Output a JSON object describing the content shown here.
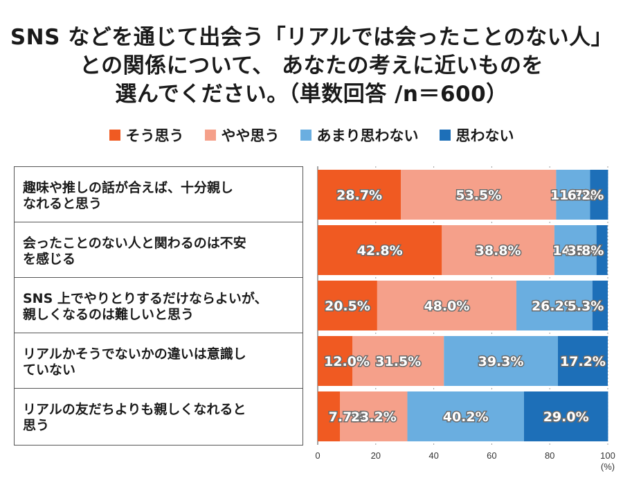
{
  "title_lines": [
    "SNS などを通じて出会う「リアルでは会ったことのない人」",
    "との関係について、 あなたの考えに近いものを",
    "選んでください。（単数回答 /n＝600）"
  ],
  "colors": {
    "そう思う": "#f05a22",
    "やや思う": "#f5a08a",
    "あまり思わない": "#6aaee0",
    "思わない": "#1d6fb8"
  },
  "chart_data": {
    "type": "bar",
    "orientation": "horizontal",
    "stacked": true,
    "categories": [
      "趣味や推しの話が合えば、十分親しくなれると思う",
      "会ったことのない人と関わるのは不安を感じる",
      "SNS 上でやりとりするだけならよいが、親しくなるのは難しいと思う",
      "リアルかそうでないかの違いは意識していない",
      "リアルの友だちよりも親しくなれると思う"
    ],
    "category_lines": [
      [
        "趣味や推しの話が合えば、十分親し",
        "なれると思う"
      ],
      [
        "会ったことのない人と関わるのは不安",
        "を感じる"
      ],
      [
        "SNS 上でやりとりするだけならよいが、",
        "親しくなるのは難しいと思う"
      ],
      [
        "リアルかそうでないかの違いは意識し",
        "ていない"
      ],
      [
        "リアルの友だちよりも親しくなれると",
        "思う"
      ]
    ],
    "series": [
      {
        "name": "そう思う",
        "values": [
          28.7,
          42.8,
          20.5,
          12.0,
          7.7
        ]
      },
      {
        "name": "やや思う",
        "values": [
          53.5,
          38.8,
          48.0,
          31.5,
          23.2
        ]
      },
      {
        "name": "あまり思わない",
        "values": [
          11.7,
          14.5,
          26.2,
          39.3,
          40.2
        ]
      },
      {
        "name": "思わない",
        "values": [
          6.2,
          3.8,
          5.3,
          17.2,
          29.0
        ]
      }
    ],
    "xlim": [
      0,
      100
    ],
    "xticks": [
      0,
      20,
      40,
      60,
      80,
      100
    ],
    "xunit": "(%)",
    "legend": "top"
  }
}
